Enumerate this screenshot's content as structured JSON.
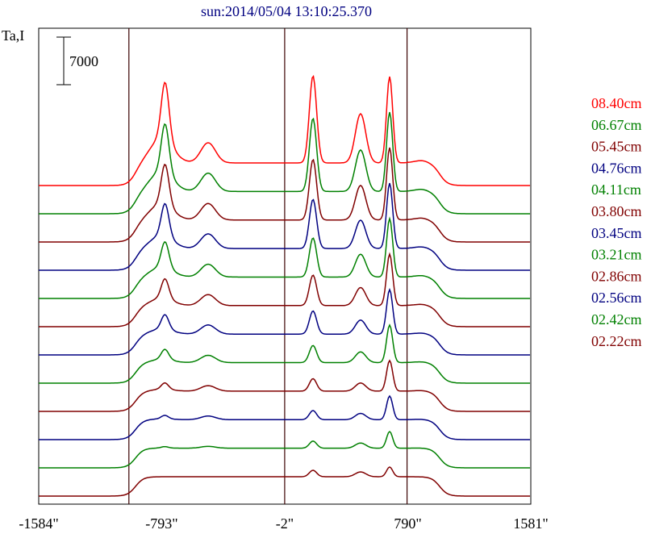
{
  "chart_data": {
    "type": "line",
    "title": "sun:2014/05/04 13:10:25.370",
    "ylabel": "Ta,I",
    "scale_bar_label": "7000",
    "x_ticks": [
      {
        "value": -1584,
        "label": "-1584\""
      },
      {
        "value": -793,
        "label": "-793\""
      },
      {
        "value": -2,
        "label": "-2\""
      },
      {
        "value": 790,
        "label": "790\""
      },
      {
        "value": 1581,
        "label": "1581\""
      }
    ],
    "xlim": [
      -1584,
      1581
    ],
    "vertical_lines": [
      -1004,
      -2,
      785
    ],
    "grid": false,
    "legend_position": "right",
    "series": [
      {
        "name": "08.40cm",
        "color": "#ff0000"
      },
      {
        "name": "06.67cm",
        "color": "#008000"
      },
      {
        "name": "05.45cm",
        "color": "#800000"
      },
      {
        "name": "04.76cm",
        "color": "#000080"
      },
      {
        "name": "04.11cm",
        "color": "#008000"
      },
      {
        "name": "03.80cm",
        "color": "#800000"
      },
      {
        "name": "03.45cm",
        "color": "#000080"
      },
      {
        "name": "03.21cm",
        "color": "#008000"
      },
      {
        "name": "02.86cm",
        "color": "#800000"
      },
      {
        "name": "02.56cm",
        "color": "#000080"
      },
      {
        "name": "02.42cm",
        "color": "#008000"
      },
      {
        "name": "02.22cm",
        "color": "#800000"
      }
    ]
  }
}
